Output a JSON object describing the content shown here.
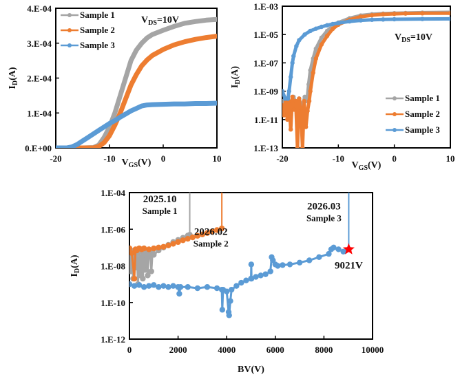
{
  "colors": {
    "sample1": "#a5a5a5",
    "sample2": "#ed7d31",
    "sample3": "#5b9bd5",
    "highlight": "#ff0000"
  },
  "chart_data": [
    {
      "id": "transfer-linear",
      "type": "line",
      "title": "",
      "annotation": {
        "main": "V",
        "sub": "DS",
        "rest": "=10V"
      },
      "xlabel": {
        "main": "V",
        "sub": "GS",
        "rest": "(V)"
      },
      "ylabel": {
        "main": "I",
        "sub": "D",
        "rest": "(A)"
      },
      "xlim": [
        -20,
        10
      ],
      "ylim": [
        0,
        0.0004
      ],
      "yscale": "linear",
      "xticks": [
        -20,
        -10,
        0,
        10
      ],
      "xtick_labels": [
        "-20",
        "-10",
        "0",
        "10"
      ],
      "yticks": [
        0,
        0.0001,
        0.0002,
        0.0003,
        0.0004
      ],
      "ytick_labels": [
        "0.E+00",
        "1.E-04",
        "2.E-04",
        "3.E-04",
        "4.E-04"
      ],
      "legend": {
        "position": "top-left",
        "entries": [
          "Sample 1",
          "Sample 2",
          "Sample 3"
        ]
      },
      "series": [
        {
          "name": "Sample 1",
          "color_key": "sample1",
          "x": [
            -20,
            -15,
            -13,
            -12,
            -11,
            -10,
            -9,
            -8,
            -7,
            -6,
            -5,
            -4,
            -3,
            -2,
            0,
            2,
            4,
            6,
            8,
            10
          ],
          "y": [
            0,
            0,
            1e-06,
            8e-06,
            3e-05,
            6e-05,
            0.0001,
            0.00015,
            0.0002,
            0.00025,
            0.00028,
            0.0003,
            0.000315,
            0.000325,
            0.000337,
            0.000348,
            0.000357,
            0.000362,
            0.000366,
            0.000368
          ]
        },
        {
          "name": "Sample 2",
          "color_key": "sample2",
          "x": [
            -20,
            -15,
            -13,
            -12,
            -11,
            -10,
            -9,
            -8,
            -7,
            -6,
            -5,
            -4,
            -3,
            -2,
            0,
            2,
            4,
            6,
            8,
            10
          ],
          "y": [
            0,
            0,
            0,
            4e-06,
            1.5e-05,
            3.5e-05,
            6.5e-05,
            0.0001,
            0.00014,
            0.00018,
            0.00021,
            0.000235,
            0.000252,
            0.000265,
            0.000282,
            0.000295,
            0.000304,
            0.000311,
            0.000316,
            0.00032
          ]
        },
        {
          "name": "Sample 3",
          "color_key": "sample3",
          "x": [
            -20,
            -18,
            -17,
            -16,
            -15,
            -14,
            -13,
            -12,
            -11,
            -10,
            -9,
            -8,
            -7,
            -6,
            -5,
            -4,
            -3,
            -2,
            0,
            2,
            4,
            6,
            8,
            10
          ],
          "y": [
            0,
            0,
            3e-06,
            1e-05,
            2e-05,
            3e-05,
            4e-05,
            5e-05,
            6e-05,
            7e-05,
            7.8e-05,
            8.8e-05,
            9.7e-05,
            0.000106,
            0.000113,
            0.00012,
            0.000123,
            0.000124,
            0.000125,
            0.000126,
            0.000126,
            0.000127,
            0.000127,
            0.000128
          ]
        }
      ]
    },
    {
      "id": "transfer-log",
      "type": "line",
      "title": "",
      "annotation": {
        "main": "V",
        "sub": "DS",
        "rest": "=10V"
      },
      "xlabel": {
        "main": "V",
        "sub": "GS",
        "rest": "(V)"
      },
      "ylabel": {
        "main": "I",
        "sub": "D",
        "rest": "(A)"
      },
      "xlim": [
        -20,
        10
      ],
      "ylim": [
        1e-13,
        0.001
      ],
      "yscale": "log",
      "xticks": [
        -20,
        -10,
        0,
        10
      ],
      "xtick_labels": [
        "-20",
        "-10",
        "0",
        "10"
      ],
      "yticks": [
        1e-13,
        1e-11,
        1e-09,
        1e-07,
        1e-05,
        0.001
      ],
      "ytick_labels": [
        "1.E-13",
        "1.E-11",
        "1.E-09",
        "1.E-07",
        "1.E-05",
        "1.E-03"
      ],
      "legend": {
        "position": "bottom-right",
        "entries": [
          "Sample 1",
          "Sample 2",
          "Sample 3"
        ]
      },
      "series": [
        {
          "name": "Sample 1",
          "color_key": "sample1",
          "x": [
            -20,
            -19.5,
            -19,
            -18.5,
            -18,
            -17.5,
            -17,
            -16.5,
            -16,
            -15.6,
            -15.3,
            -15,
            -14.5,
            -14,
            -13,
            -12,
            -11,
            -10,
            -8,
            -6,
            -4,
            -2,
            0,
            2,
            5,
            10
          ],
          "y": [
            2e-10,
            5e-11,
            3e-10,
            8e-11,
            4e-10,
            1e-10,
            3e-10,
            6e-11,
            4e-10,
            2e-10,
            3e-09,
            3e-08,
            2e-07,
            1e-06,
            6e-06,
            1.8e-05,
            4e-05,
            7e-05,
            0.00014,
            0.00022,
            0.00027,
            0.0003,
            0.00032,
            0.00033,
            0.00035,
            0.00037
          ]
        },
        {
          "name": "Sample 2",
          "color_key": "sample2",
          "x": [
            -20,
            -19.7,
            -19.4,
            -19.1,
            -18.8,
            -18.5,
            -18.2,
            -17.9,
            -17.6,
            -17.3,
            -17,
            -16.7,
            -16.4,
            -16.1,
            -15.8,
            -15.5,
            -15.2,
            -15,
            -14.5,
            -14,
            -13,
            -12,
            -11,
            -10,
            -8,
            -6,
            -4,
            -2,
            0,
            2,
            5,
            10
          ],
          "y": [
            1e-10,
            2e-11,
            3e-10,
            1e-11,
            2e-10,
            2e-12,
            4e-10,
            5e-11,
            2e-10,
            1e-13,
            3e-10,
            6e-11,
            1e-13,
            2e-10,
            3e-12,
            4e-11,
            2e-10,
            1e-09,
            2e-08,
            2e-07,
            2e-06,
            8e-06,
            2.5e-05,
            5e-05,
            0.00011,
            0.00018,
            0.00023,
            0.00027,
            0.00029,
            0.000305,
            0.000315,
            0.00032
          ]
        },
        {
          "name": "Sample 3",
          "color_key": "sample3",
          "x": [
            -20,
            -19.5,
            -19,
            -18.8,
            -18.5,
            -18.2,
            -18,
            -17.5,
            -17,
            -16,
            -15,
            -14,
            -13,
            -12,
            -11,
            -10,
            -8,
            -6,
            -4,
            -2,
            0,
            5,
            10
          ],
          "y": [
            1e-09,
            3e-10,
            3e-10,
            1e-09,
            1e-08,
            1e-07,
            3e-07,
            1.5e-06,
            4e-06,
            1e-05,
            1.8e-05,
            2.6e-05,
            3.5e-05,
            4.5e-05,
            5.5e-05,
            6.5e-05,
            8.5e-05,
            0.0001,
            0.00011,
            0.000115,
            0.00012,
            0.000125,
            0.000128
          ]
        }
      ]
    },
    {
      "id": "breakdown",
      "type": "scatter",
      "title": "",
      "xlabel": {
        "main": "BV(V)",
        "sub": "",
        "rest": ""
      },
      "ylabel": {
        "main": "I",
        "sub": "D",
        "rest": "(A)"
      },
      "xlim": [
        0,
        10000
      ],
      "ylim": [
        1e-12,
        0.0001
      ],
      "yscale": "log",
      "xticks": [
        0,
        2000,
        4000,
        6000,
        8000,
        10000
      ],
      "xtick_labels": [
        "0",
        "2000",
        "4000",
        "6000",
        "8000",
        "10000"
      ],
      "yticks": [
        1e-12,
        1e-10,
        1e-08,
        1e-06,
        0.0001
      ],
      "ytick_labels": [
        "1.E-12",
        "1.E-10",
        "1.E-08",
        "1.E-06",
        "1.E-04"
      ],
      "annotations": [
        {
          "name": "sample1-label",
          "lines": [
            "2025.10",
            "Sample 1"
          ],
          "x": 1250,
          "y": 3e-05
        },
        {
          "name": "sample2-label",
          "lines": [
            "2026.02",
            "Sample 2"
          ],
          "x": 3350,
          "y": 5e-07
        },
        {
          "name": "sample3-label",
          "lines": [
            "2026.03",
            "Sample 3"
          ],
          "x": 8000,
          "y": 1.2e-05
        },
        {
          "name": "breakdown-value-label",
          "lines": [
            "9021V"
          ],
          "x": 9021,
          "y": 7e-09,
          "color_key": "highlight"
        }
      ],
      "marker": {
        "name": "breakdown-star",
        "x": 9021,
        "y": 8e-08,
        "color_key": "highlight"
      },
      "series": [
        {
          "name": "Sample 1 (2025.10)",
          "color_key": "sample1",
          "breakdown_v": 2480,
          "x": [
            0,
            50,
            100,
            150,
            200,
            250,
            300,
            350,
            400,
            450,
            500,
            550,
            600,
            650,
            700,
            750,
            800,
            850,
            900,
            950,
            1000,
            1200,
            1400,
            1600,
            1800,
            2000,
            2200,
            2400,
            2480
          ],
          "y": [
            8e-08,
            5e-09,
            6e-08,
            2e-09,
            7e-08,
            8e-09,
            5e-08,
            1e-09,
            6e-08,
            3e-09,
            7e-08,
            2e-09,
            4e-08,
            6e-09,
            7e-08,
            3e-09,
            5e-08,
            7e-08,
            5e-09,
            6e-08,
            4e-08,
            7e-08,
            1e-07,
            1.4e-07,
            2e-07,
            2.6e-07,
            3.4e-07,
            4.5e-07,
            5e-07
          ]
        },
        {
          "name": "Sample 2 (2026.02)",
          "color_key": "sample2",
          "breakdown_v": 3800,
          "x": [
            0,
            100,
            200,
            250,
            300,
            400,
            500,
            600,
            800,
            1000,
            1200,
            1400,
            1600,
            1800,
            2000,
            2200,
            2400,
            2600,
            2800,
            3000,
            3200,
            3400,
            3600,
            3800
          ],
          "y": [
            9e-08,
            5e-08,
            2e-09,
            8e-08,
            7e-08,
            9e-08,
            8e-08,
            9e-08,
            8e-08,
            9e-08,
            1e-07,
            1.1e-07,
            1.3e-07,
            1.6e-07,
            2e-07,
            2.5e-07,
            3e-07,
            3.6e-07,
            4.4e-07,
            5.2e-07,
            6.2e-07,
            7.5e-07,
            9e-07,
            1.1e-06
          ]
        },
        {
          "name": "Sample 3 (2026.03)",
          "color_key": "sample3",
          "breakdown_v": 9021,
          "x": [
            0,
            200,
            400,
            600,
            800,
            1000,
            1200,
            1400,
            1600,
            1800,
            2000,
            2050,
            2100,
            2400,
            2800,
            3200,
            3600,
            3800,
            3820,
            3850,
            4000,
            4080,
            4100,
            4150,
            4200,
            4400,
            4600,
            4800,
            5000,
            5010,
            5020,
            5200,
            5400,
            5600,
            5800,
            5850,
            5900,
            6000,
            6100,
            6300,
            6600,
            7000,
            7400,
            7800,
            8200,
            8300,
            8400,
            8600,
            8800,
            9021
          ],
          "y": [
            1e-09,
            8e-10,
            9e-10,
            7e-10,
            8e-10,
            9e-10,
            7e-10,
            8e-10,
            7e-10,
            8e-10,
            7e-10,
            3e-10,
            7e-10,
            7e-10,
            6e-10,
            7e-10,
            6e-10,
            5e-10,
            4e-11,
            5e-10,
            4e-10,
            3e-11,
            2e-11,
            1.2e-10,
            5e-10,
            8e-10,
            1.2e-09,
            1.6e-09,
            2e-09,
            1.2e-08,
            2e-09,
            2.5e-09,
            3e-09,
            3.5e-09,
            5e-09,
            3e-08,
            2e-08,
            1.2e-08,
            1e-08,
            1.1e-08,
            1.2e-08,
            1.5e-08,
            2e-08,
            3e-08,
            4.5e-08,
            8e-08,
            1e-07,
            8e-08,
            6e-08,
            8e-08
          ]
        }
      ]
    }
  ]
}
